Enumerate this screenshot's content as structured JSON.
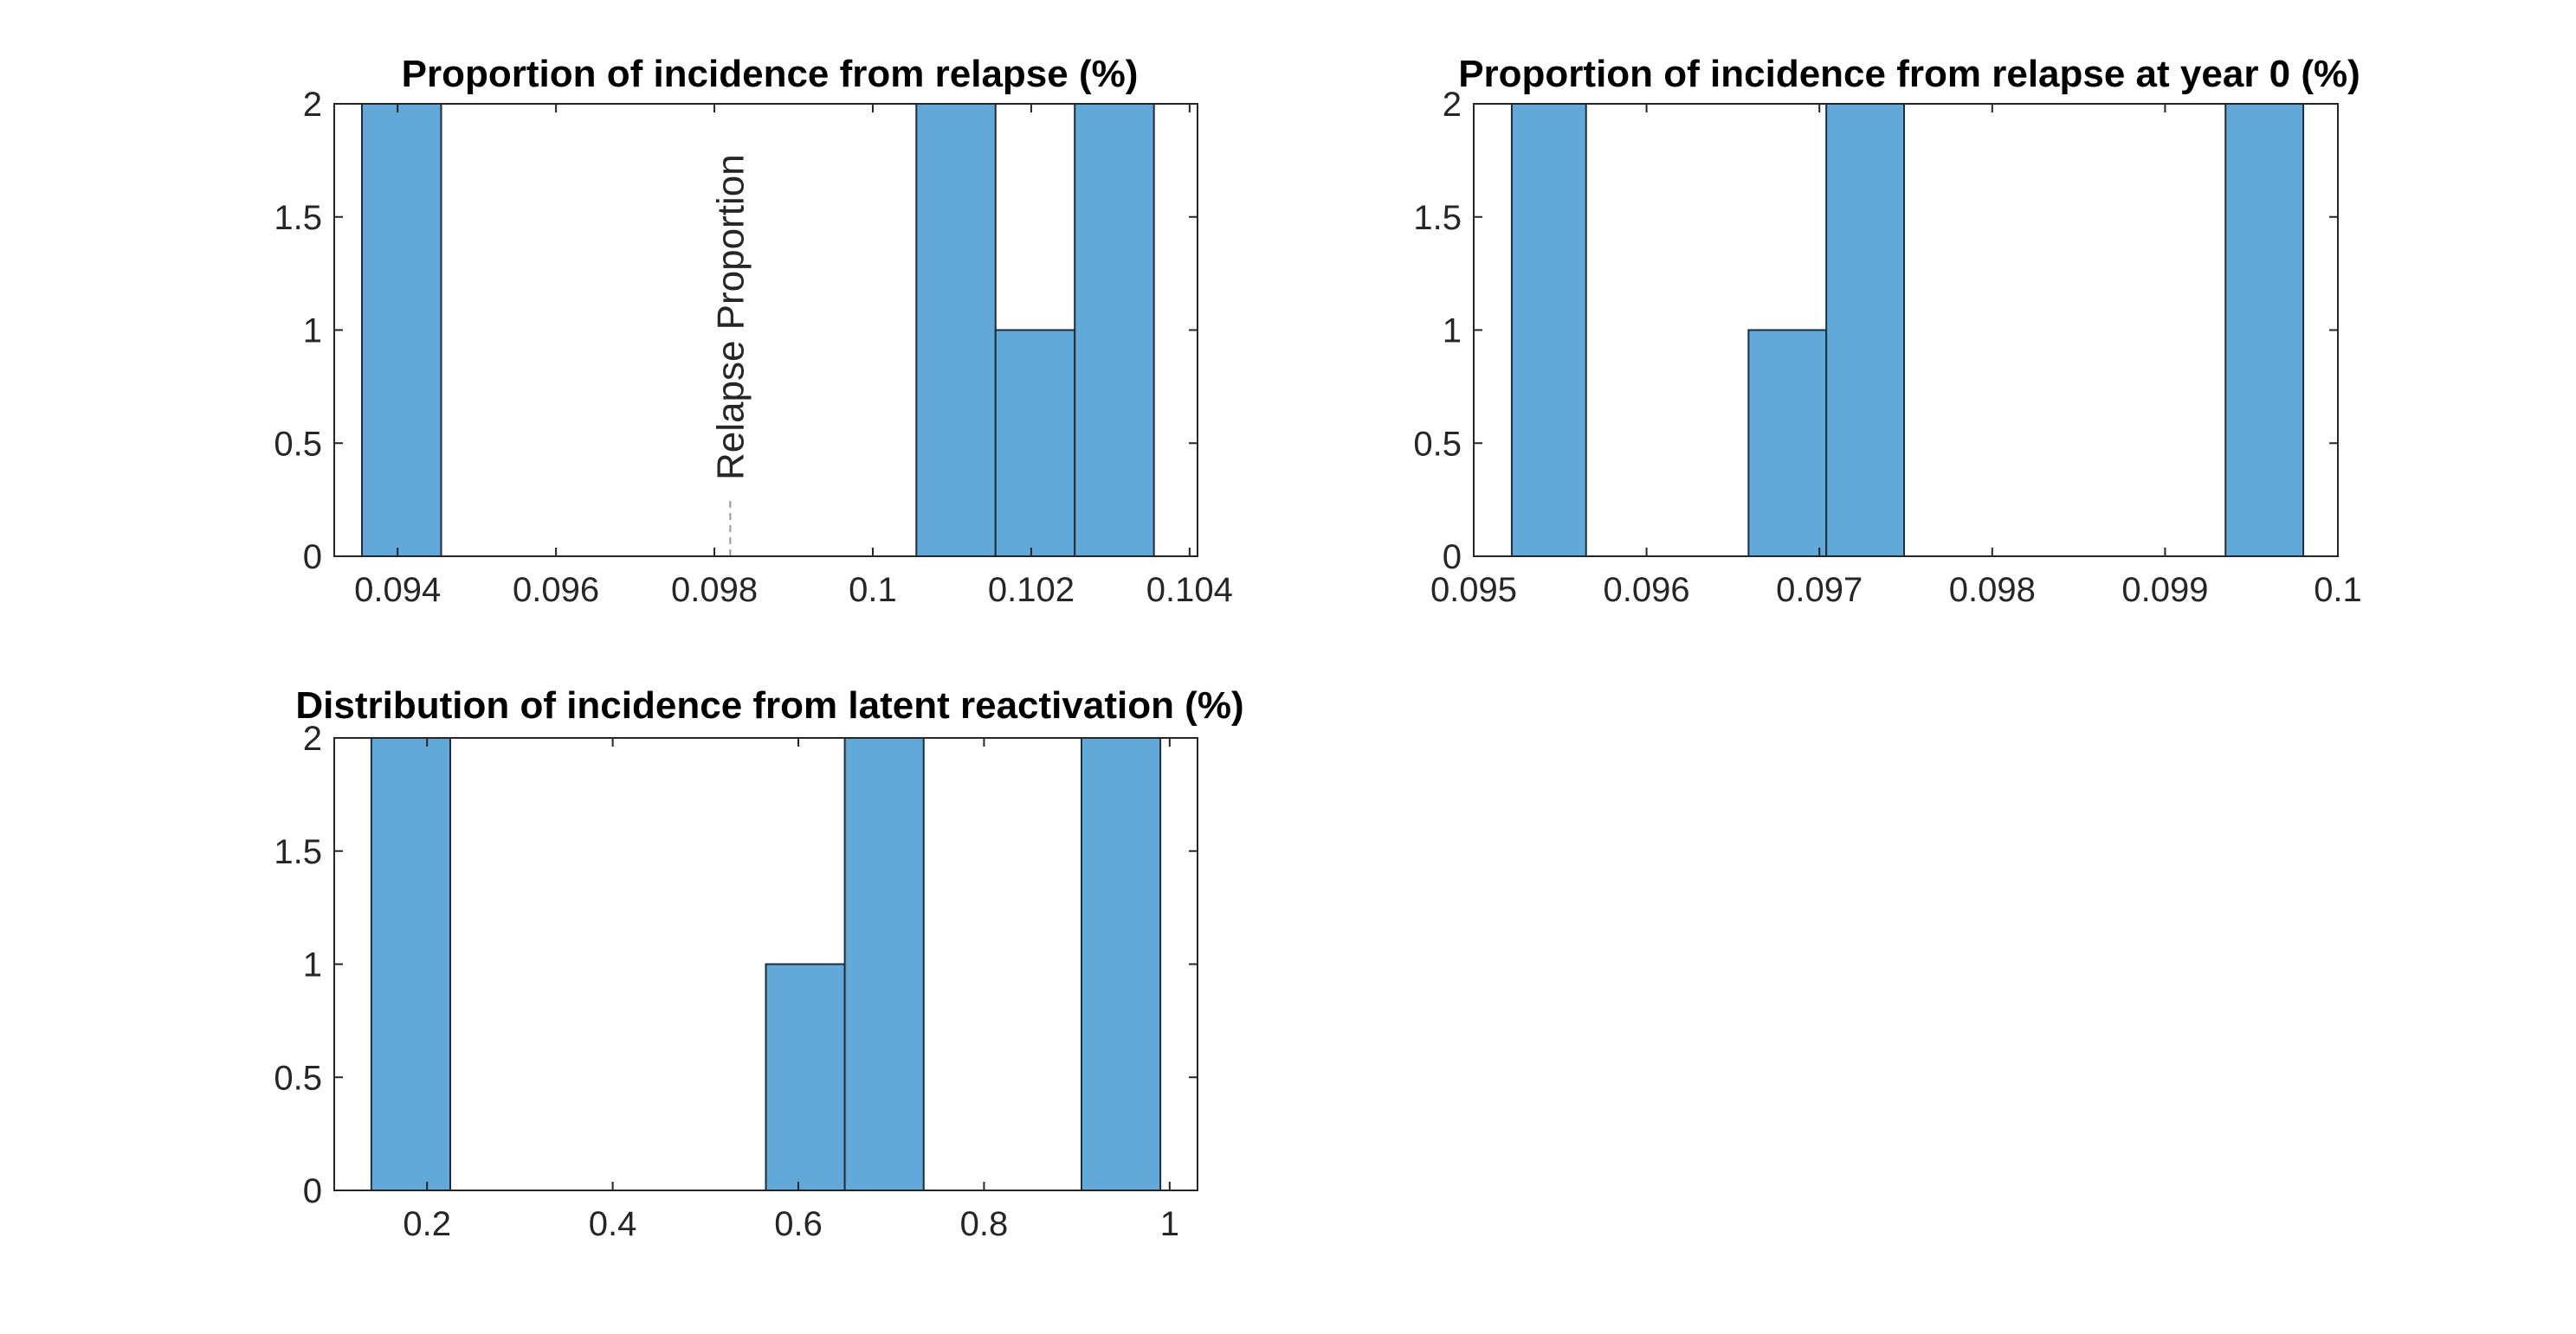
{
  "figure": {
    "background": "#ffffff"
  },
  "style": {
    "bar_fill": "#62a8d8",
    "bar_edge": "#1c2e3c",
    "axis_color": "#262626"
  },
  "chart_data": [
    {
      "type": "bar",
      "title": "Proportion of incidence from relapse (%)",
      "bins": [
        {
          "x0": 0.09355,
          "x1": 0.09455,
          "count": 2
        },
        {
          "x0": 0.10055,
          "x1": 0.10155,
          "count": 2
        },
        {
          "x0": 0.10155,
          "x1": 0.10255,
          "count": 1
        },
        {
          "x0": 0.10255,
          "x1": 0.10355,
          "count": 2
        }
      ],
      "xlim": [
        0.0932,
        0.1041
      ],
      "ylim": [
        0,
        2
      ],
      "xticks": [
        0.094,
        0.096,
        0.098,
        0.1,
        0.102,
        0.104
      ],
      "xtick_labels": [
        "0.094",
        "0.096",
        "0.098",
        "0.1",
        "0.102",
        "0.104"
      ],
      "yticks": [
        0,
        0.5,
        1,
        1.5,
        2
      ],
      "ytick_labels": [
        "0",
        "0.5",
        "1",
        "1.5",
        "2"
      ],
      "reference_line": {
        "x": 0.0982,
        "label": "Relapse Proportion",
        "style": "dashed"
      },
      "grid": false
    },
    {
      "type": "bar",
      "title": "Proportion of incidence from relapse at year 0 (%)",
      "bins": [
        {
          "x0": 0.09522,
          "x1": 0.09565,
          "count": 2
        },
        {
          "x0": 0.09659,
          "x1": 0.09704,
          "count": 1
        },
        {
          "x0": 0.09704,
          "x1": 0.09749,
          "count": 2
        },
        {
          "x0": 0.09935,
          "x1": 0.0998,
          "count": 2
        }
      ],
      "xlim": [
        0.095,
        0.1
      ],
      "ylim": [
        0,
        2
      ],
      "xticks": [
        0.095,
        0.096,
        0.097,
        0.098,
        0.099,
        0.1
      ],
      "xtick_labels": [
        "0.095",
        "0.096",
        "0.097",
        "0.098",
        "0.099",
        "0.1"
      ],
      "yticks": [
        0,
        0.5,
        1,
        1.5,
        2
      ],
      "ytick_labels": [
        "0",
        "0.5",
        "1",
        "1.5",
        "2"
      ],
      "grid": false
    },
    {
      "type": "bar",
      "title": "Distribution of incidence from latent reactivation (%)",
      "bins": [
        {
          "x0": 0.14,
          "x1": 0.225,
          "count": 2
        },
        {
          "x0": 0.565,
          "x1": 0.65,
          "count": 1
        },
        {
          "x0": 0.65,
          "x1": 0.735,
          "count": 2
        },
        {
          "x0": 0.905,
          "x1": 0.99,
          "count": 2
        }
      ],
      "xlim": [
        0.1,
        1.03
      ],
      "ylim": [
        0,
        2
      ],
      "xticks": [
        0.2,
        0.4,
        0.6,
        0.8,
        1
      ],
      "xtick_labels": [
        "0.2",
        "0.4",
        "0.6",
        "0.8",
        "1"
      ],
      "yticks": [
        0,
        0.5,
        1,
        1.5,
        2
      ],
      "ytick_labels": [
        "0",
        "0.5",
        "1",
        "1.5",
        "2"
      ],
      "grid": false
    }
  ]
}
